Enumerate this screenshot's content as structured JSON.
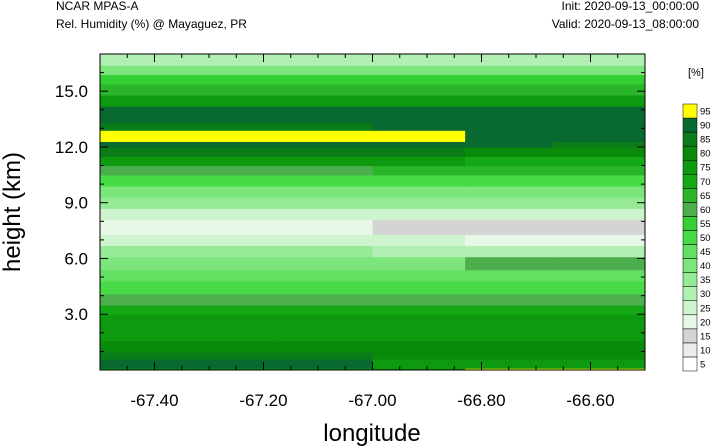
{
  "header": {
    "model_title": "NCAR MPAS-A",
    "variable_title": "Rel. Humidity (%) @ Mayaguez, PR",
    "init_text": "Init: 2020-09-13_00:00:00",
    "valid_text": "Valid: 2020-09-13_08:00:00"
  },
  "chart_data": {
    "type": "heatmap",
    "title": "Rel. Humidity (%) @ Mayaguez, PR",
    "xlabel": "longitude",
    "ylabel": "height (km)",
    "xlim": [
      -67.5,
      -66.5
    ],
    "ylim": [
      0,
      17
    ],
    "x_ticks": [
      -67.4,
      -67.2,
      -67.0,
      -66.8,
      -66.6
    ],
    "x_tick_labels": [
      "-67.40",
      "-67.20",
      "-67.00",
      "-66.80",
      "-66.60"
    ],
    "y_ticks": [
      3,
      6,
      9,
      12,
      15
    ],
    "y_tick_labels": [
      "3.0",
      "6.0",
      "9.0",
      "12.0",
      "15.0"
    ],
    "colorbar": {
      "unit_label": "[%]",
      "levels": [
        5,
        10,
        15,
        20,
        25,
        30,
        35,
        40,
        45,
        50,
        55,
        60,
        65,
        70,
        75,
        80,
        85,
        90,
        95
      ],
      "colors": [
        "#ffffff",
        "#ececec",
        "#d4d4d4",
        "#e8f8e8",
        "#cdf4cd",
        "#b2efb2",
        "#96ea96",
        "#7ce67c",
        "#62e062",
        "#48db48",
        "#34cf34",
        "#4cae4c",
        "#2bb52b",
        "#14a814",
        "#0e9a0e",
        "#0a8a0a",
        "#0a7c18",
        "#086a30",
        "#ffff00"
      ]
    },
    "layers": [
      {
        "z": [
          0.0,
          0.1
        ],
        "levels": [
          75,
          75,
          75,
          75,
          95,
          95
        ]
      },
      {
        "z": [
          0.1,
          0.6
        ],
        "levels": [
          90,
          90,
          90,
          75,
          75,
          75
        ]
      },
      {
        "z": [
          0.6,
          1.0
        ],
        "levels": [
          85,
          85,
          85,
          80,
          80,
          80
        ]
      },
      {
        "z": [
          1.0,
          1.6
        ],
        "levels": [
          80,
          80,
          80,
          80,
          80,
          80
        ]
      },
      {
        "z": [
          1.6,
          2.2
        ],
        "levels": [
          75,
          75,
          75,
          75,
          75,
          75
        ]
      },
      {
        "z": [
          2.2,
          3.0
        ],
        "levels": [
          75,
          75,
          75,
          75,
          75,
          75
        ]
      },
      {
        "z": [
          3.0,
          3.5
        ],
        "levels": [
          70,
          70,
          70,
          70,
          70,
          70
        ]
      },
      {
        "z": [
          3.5,
          4.1
        ],
        "levels": [
          60,
          60,
          60,
          60,
          60,
          60
        ]
      },
      {
        "z": [
          4.1,
          4.8
        ],
        "levels": [
          50,
          50,
          50,
          50,
          50,
          50
        ]
      },
      {
        "z": [
          4.8,
          5.4
        ],
        "levels": [
          45,
          45,
          45,
          45,
          45,
          45
        ]
      },
      {
        "z": [
          5.4,
          6.1
        ],
        "levels": [
          40,
          40,
          40,
          40,
          60,
          60
        ]
      },
      {
        "z": [
          6.1,
          6.7
        ],
        "levels": [
          35,
          35,
          35,
          30,
          30,
          30
        ]
      },
      {
        "z": [
          6.7,
          7.3
        ],
        "levels": [
          25,
          25,
          25,
          25,
          20,
          20
        ]
      },
      {
        "z": [
          7.3,
          8.1
        ],
        "levels": [
          20,
          20,
          20,
          15,
          15,
          15
        ]
      },
      {
        "z": [
          8.1,
          8.7
        ],
        "levels": [
          25,
          25,
          25,
          25,
          25,
          25
        ]
      },
      {
        "z": [
          8.7,
          9.3
        ],
        "levels": [
          35,
          35,
          35,
          35,
          35,
          35
        ]
      },
      {
        "z": [
          9.3,
          9.9
        ],
        "levels": [
          40,
          40,
          40,
          40,
          40,
          40
        ]
      },
      {
        "z": [
          9.9,
          10.5
        ],
        "levels": [
          50,
          50,
          50,
          50,
          50,
          50
        ]
      },
      {
        "z": [
          10.5,
          11.0
        ],
        "levels": [
          60,
          60,
          60,
          65,
          65,
          65
        ]
      },
      {
        "z": [
          11.0,
          11.5
        ],
        "levels": [
          75,
          75,
          75,
          75,
          70,
          70
        ]
      },
      {
        "z": [
          11.5,
          12.0
        ],
        "levels": [
          85,
          85,
          85,
          85,
          80,
          80
        ]
      },
      {
        "z": [
          12.0,
          12.3
        ],
        "levels": [
          90,
          90,
          90,
          90,
          90,
          85
        ]
      },
      {
        "z": [
          12.3,
          12.9
        ],
        "levels": [
          95,
          95,
          95,
          95,
          90,
          90
        ]
      },
      {
        "z": [
          12.9,
          13.3
        ],
        "levels": [
          85,
          85,
          85,
          90,
          90,
          90
        ]
      },
      {
        "z": [
          13.3,
          14.2
        ],
        "levels": [
          90,
          90,
          90,
          90,
          90,
          90
        ]
      },
      {
        "z": [
          14.2,
          14.8
        ],
        "levels": [
          75,
          75,
          75,
          75,
          75,
          75
        ]
      },
      {
        "z": [
          14.8,
          15.4
        ],
        "levels": [
          65,
          65,
          65,
          65,
          65,
          65
        ]
      },
      {
        "z": [
          15.4,
          15.9
        ],
        "levels": [
          55,
          55,
          55,
          55,
          55,
          55
        ]
      },
      {
        "z": [
          15.9,
          16.4
        ],
        "levels": [
          40,
          40,
          40,
          40,
          40,
          40
        ]
      },
      {
        "z": [
          16.4,
          17.0
        ],
        "levels": [
          30,
          30,
          30,
          30,
          30,
          30
        ]
      }
    ],
    "layer_columns_lon": [
      -67.5,
      -67.33,
      -67.17,
      -67.0,
      -66.83,
      -66.67,
      -66.5
    ]
  }
}
